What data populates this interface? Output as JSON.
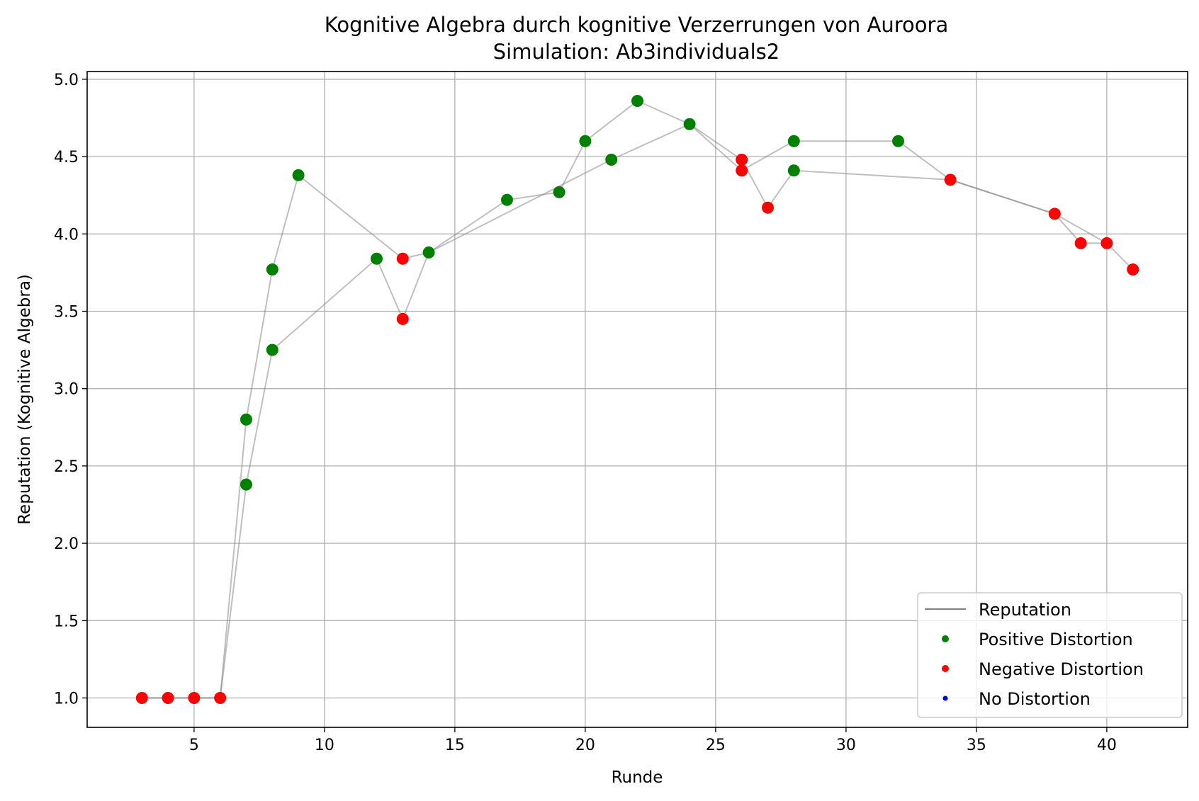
{
  "chart_data": {
    "type": "scatter",
    "title": "Kognitive Algebra durch kognitive Verzerrungen von Auroora",
    "subtitle": "Simulation: Ab3individuals2",
    "xlabel": "Runde",
    "ylabel": "Reputation (Kognitive Algebra)",
    "xlim": [
      0.9,
      43.1
    ],
    "ylim": [
      0.81,
      5.05
    ],
    "xticks": [
      5,
      10,
      15,
      20,
      25,
      30,
      35,
      40
    ],
    "xtick_labels": [
      "5",
      "10",
      "15",
      "20",
      "25",
      "30",
      "35",
      "40"
    ],
    "yticks": [
      1.0,
      1.5,
      2.0,
      2.5,
      3.0,
      3.5,
      4.0,
      4.5,
      5.0
    ],
    "ytick_labels": [
      "1.0",
      "1.5",
      "2.0",
      "2.5",
      "3.0",
      "3.5",
      "4.0",
      "4.5",
      "5.0"
    ],
    "grid": true,
    "legend_position": "lower-right",
    "colors": {
      "reputation": "#808080",
      "positive": "#008000",
      "negative": "#ff0000",
      "none": "#0000ff"
    },
    "series": [
      {
        "name": "Reputation",
        "kind": "line",
        "x": [
          3,
          4,
          5,
          6,
          7,
          8,
          9,
          13,
          14,
          17,
          19,
          20,
          22,
          24,
          26,
          28,
          32,
          34,
          38,
          40,
          41
        ],
        "y": [
          1.0,
          1.0,
          1.0,
          1.0,
          2.8,
          3.77,
          4.38,
          3.84,
          3.88,
          4.22,
          4.27,
          4.6,
          4.86,
          4.71,
          4.41,
          4.6,
          4.6,
          4.35,
          4.13,
          3.94,
          3.77
        ]
      },
      {
        "name": "Reputation",
        "kind": "line",
        "x": [
          3,
          4,
          5,
          6,
          7,
          8,
          12,
          13,
          14,
          21,
          24,
          26,
          27,
          28,
          34,
          38,
          39,
          40
        ],
        "y": [
          1.0,
          1.0,
          1.0,
          1.0,
          2.38,
          3.25,
          3.84,
          3.45,
          3.88,
          4.48,
          4.71,
          4.48,
          4.17,
          4.41,
          4.35,
          4.13,
          3.94,
          3.94
        ]
      },
      {
        "name": "Positive Distortion",
        "kind": "points",
        "x": [
          7,
          7,
          8,
          8,
          9,
          12,
          14,
          17,
          19,
          20,
          21,
          22,
          24,
          28,
          28,
          32
        ],
        "y": [
          2.8,
          2.38,
          3.77,
          3.25,
          4.38,
          3.84,
          3.88,
          4.22,
          4.27,
          4.6,
          4.48,
          4.86,
          4.71,
          4.6,
          4.41,
          4.6
        ]
      },
      {
        "name": "Negative Distortion",
        "kind": "points",
        "x": [
          3,
          4,
          5,
          6,
          13,
          13,
          26,
          26,
          27,
          34,
          38,
          39,
          40,
          41
        ],
        "y": [
          1.0,
          1.0,
          1.0,
          1.0,
          3.84,
          3.45,
          4.48,
          4.41,
          4.17,
          4.35,
          4.13,
          3.94,
          3.94,
          3.77
        ]
      },
      {
        "name": "No Distortion",
        "kind": "points",
        "x": [],
        "y": []
      }
    ],
    "legend": [
      {
        "label": "Reputation",
        "marker": "line",
        "color": "#808080"
      },
      {
        "label": "Positive Distortion",
        "marker": "dot",
        "color": "#008000"
      },
      {
        "label": "Negative Distortion",
        "marker": "dot",
        "color": "#ff0000"
      },
      {
        "label": "No Distortion",
        "marker": "dot-small",
        "color": "#0000ff"
      }
    ]
  }
}
